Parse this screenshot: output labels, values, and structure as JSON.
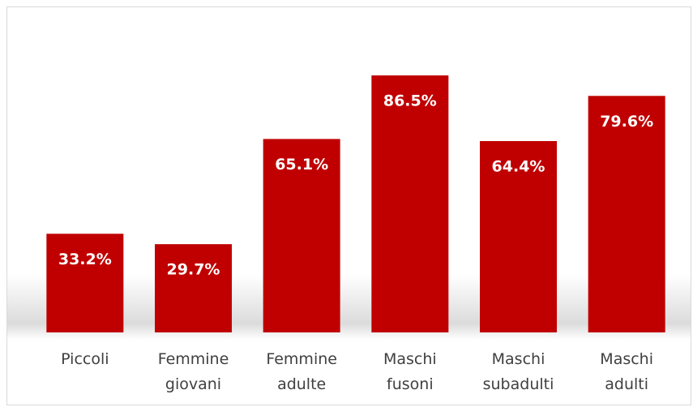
{
  "chart_data": {
    "type": "bar",
    "categories": [
      "Piccoli",
      "Femmine giovani",
      "Femmine adulte",
      "Maschi fusoni",
      "Maschi subadulti",
      "Maschi adulti"
    ],
    "values": [
      33.2,
      29.7,
      65.1,
      86.5,
      64.4,
      79.6
    ],
    "value_labels": [
      "33.2%",
      "29.7%",
      "65.1%",
      "86.5%",
      "64.4%",
      "79.6%"
    ],
    "color": "#c00000"
  }
}
